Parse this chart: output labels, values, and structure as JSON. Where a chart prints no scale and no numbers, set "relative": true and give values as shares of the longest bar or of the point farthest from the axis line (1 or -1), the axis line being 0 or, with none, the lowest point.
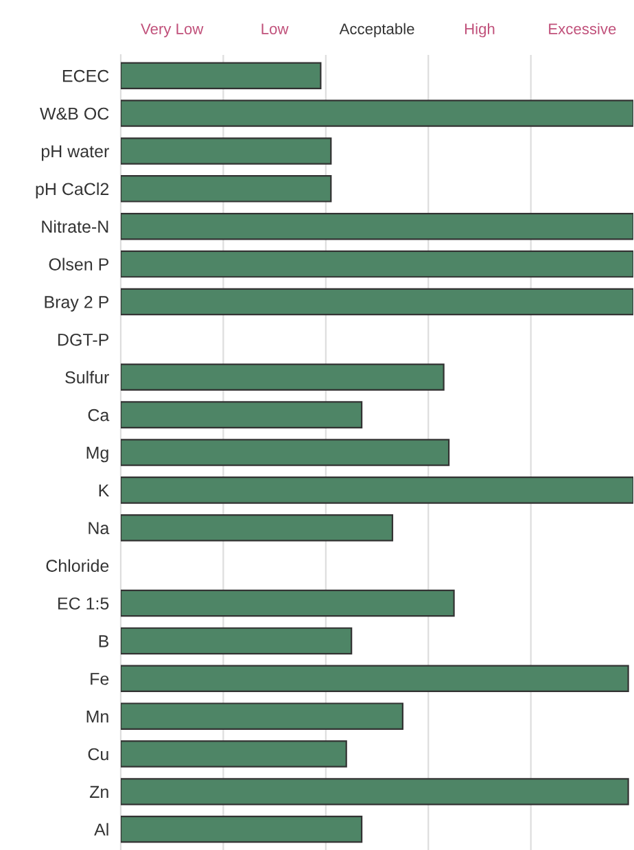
{
  "chart_data": {
    "type": "bar",
    "orientation": "horizontal",
    "relative": true,
    "grid": "x",
    "categories": [
      "ECEC",
      "W&B OC",
      "pH water",
      "pH CaCl2",
      "Nitrate-N",
      "Olsen P",
      "Bray 2 P",
      "DGT-P",
      "Sulfur",
      "Ca",
      "Mg",
      "K",
      "Na",
      "Chloride",
      "EC 1:5",
      "B",
      "Fe",
      "Mn",
      "Cu",
      "Zn",
      "Al"
    ],
    "series": [
      {
        "color": "#4e8566",
        "values": [
          0.39,
          1.0,
          0.41,
          0.41,
          1.0,
          1.0,
          1.0,
          null,
          0.63,
          0.47,
          0.64,
          1.0,
          0.53,
          null,
          0.65,
          0.45,
          0.99,
          0.55,
          0.44,
          0.99,
          0.47
        ]
      }
    ],
    "annotations": [
      "Very Low",
      "Low",
      "Acceptable",
      "High",
      "Excessive"
    ]
  }
}
